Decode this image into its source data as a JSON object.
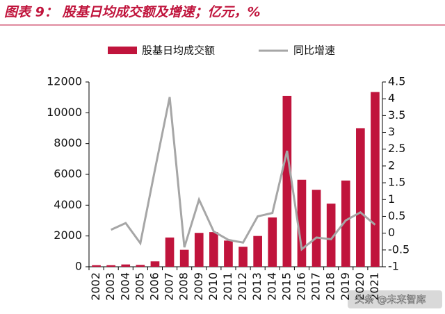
{
  "chart_data": {
    "type": "bar_line",
    "title": "图表 9：  股基日均成交额及增速；亿元，%",
    "watermark": "头条 @未来智库",
    "categories": [
      "2002",
      "2003",
      "2004",
      "2005",
      "2006",
      "2007",
      "2008",
      "2009",
      "2010",
      "2011",
      "2012",
      "2013",
      "2014",
      "2015",
      "2016",
      "2017",
      "2018",
      "2019",
      "2020",
      "2021"
    ],
    "series": [
      {
        "name": "股基日均成交额",
        "type": "bar",
        "color": "#c0143c",
        "values": [
          100,
          100,
          150,
          120,
          350,
          1900,
          1100,
          2200,
          2250,
          1700,
          1300,
          2000,
          3200,
          11100,
          5650,
          5000,
          4100,
          5600,
          9000,
          11350
        ]
      },
      {
        "name": "同比增速",
        "type": "line",
        "color": "#a6a6a6",
        "axis": "y2",
        "values": [
          null,
          0.1,
          0.3,
          -0.3,
          1.9,
          4.05,
          -0.42,
          1.0,
          0.05,
          -0.2,
          -0.28,
          0.5,
          0.6,
          2.45,
          -0.48,
          -0.13,
          -0.18,
          0.38,
          0.62,
          0.25
        ]
      }
    ],
    "ylim": [
      0,
      12000
    ],
    "yticks": [
      0,
      2000,
      4000,
      6000,
      8000,
      10000,
      12000
    ],
    "y2lim": [
      -1,
      4.5
    ],
    "y2ticks": [
      -1,
      -0.5,
      0,
      0.5,
      1,
      1.5,
      2,
      2.5,
      3,
      3.5,
      4,
      4.5
    ],
    "grid": false
  }
}
